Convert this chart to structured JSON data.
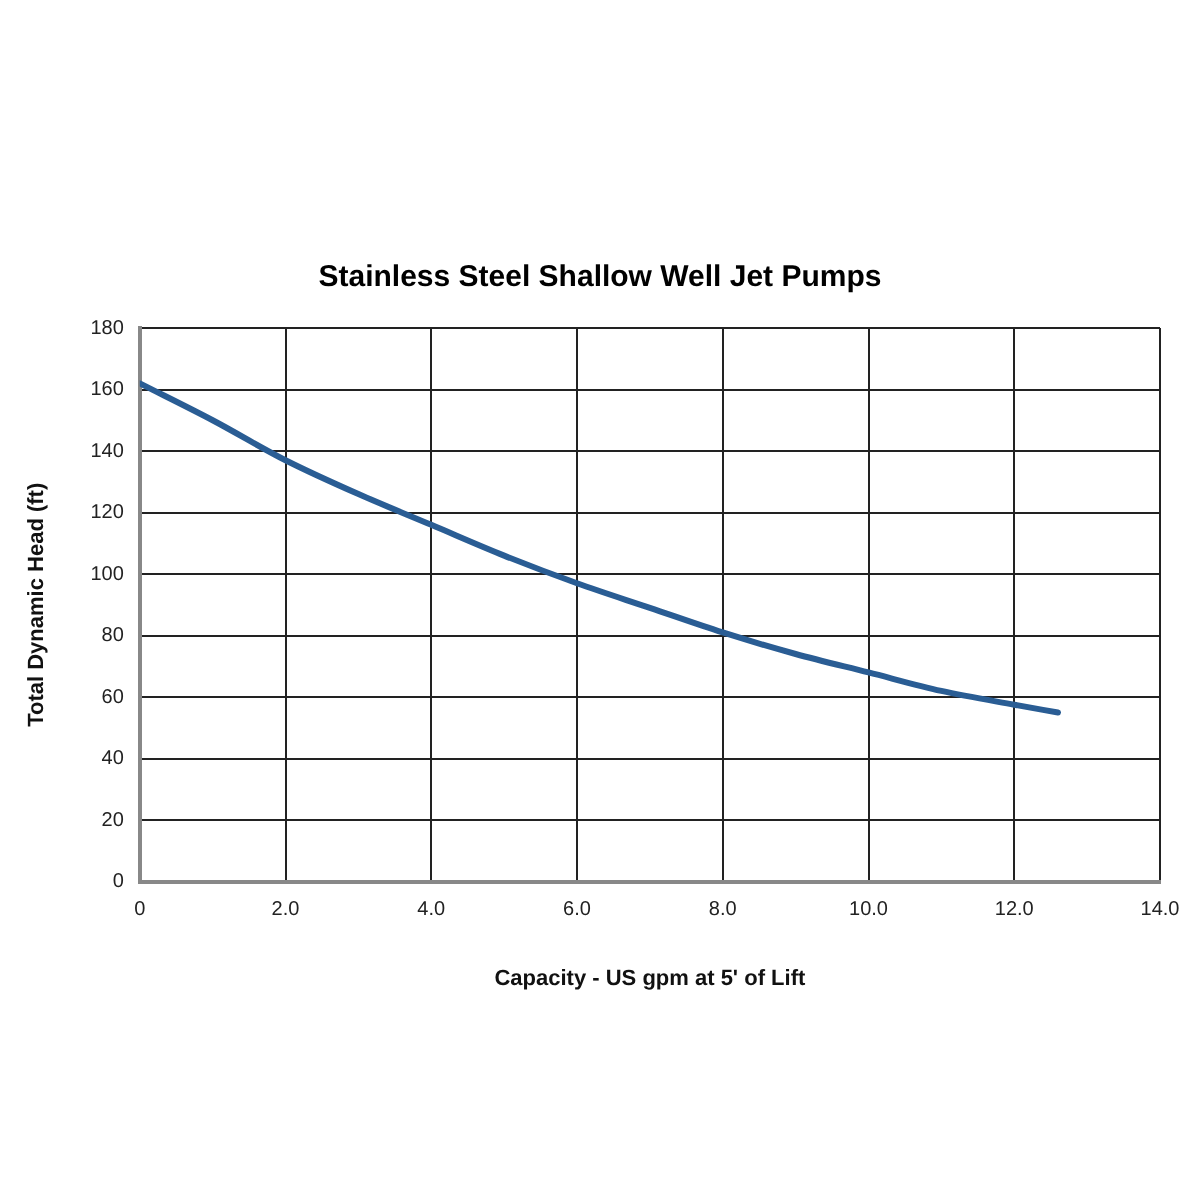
{
  "chart_data": {
    "type": "line",
    "title": "Stainless Steel Shallow Well Jet Pumps",
    "xlabel": "Capacity - US gpm at 5' of Lift",
    "ylabel": "Total Dynamic Head (ft)",
    "x": [
      0,
      1,
      2,
      3,
      4,
      5,
      6,
      7,
      8,
      9,
      10,
      11,
      12,
      12.6
    ],
    "series": [
      {
        "color": "#2a5d94",
        "values": [
          162,
          150,
          137,
          126,
          116,
          106,
          97,
          89,
          81,
          74,
          68,
          62,
          57.5,
          55
        ]
      }
    ],
    "xlim": [
      0,
      14
    ],
    "xticks": [
      0,
      {
        "value": 2,
        "label": "2.0"
      },
      {
        "value": 4,
        "label": "4.0"
      },
      {
        "value": 6,
        "label": "6.0"
      },
      {
        "value": 8,
        "label": "8.0"
      },
      {
        "value": 10,
        "label": "10.0"
      },
      {
        "value": 12,
        "label": "12.0"
      },
      {
        "value": 14,
        "label": "14.0"
      }
    ],
    "ylim": [
      0,
      180
    ],
    "yticks": [
      0,
      20,
      40,
      60,
      80,
      100,
      120,
      140,
      160,
      180
    ],
    "grid": true,
    "marker": "none",
    "line_style": "solid",
    "legend": false
  }
}
